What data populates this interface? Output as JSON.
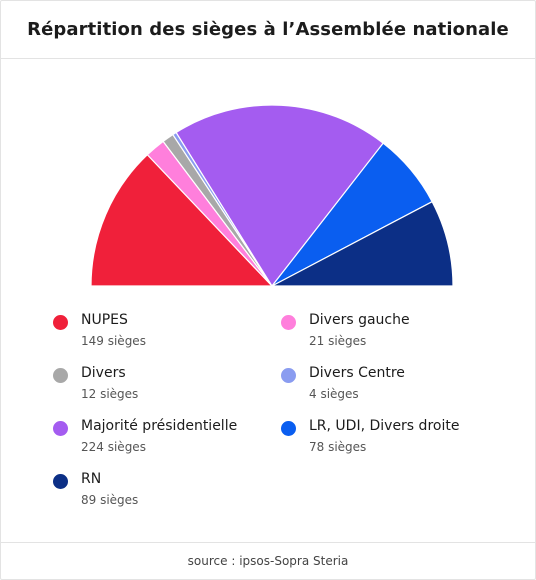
{
  "chart_data": {
    "type": "pie",
    "variant": "half-donut",
    "title": "Répartition des sièges à l’Assemblée nationale",
    "unit": "sièges",
    "series": [
      {
        "name": "NUPES",
        "value": 149,
        "value_label": "149 sièges",
        "color": "#f0203a"
      },
      {
        "name": "Divers gauche",
        "value": 21,
        "value_label": "21 sièges",
        "color": "#ff7fdc"
      },
      {
        "name": "Divers",
        "value": 12,
        "value_label": "12 sièges",
        "color": "#a8a8a8"
      },
      {
        "name": "Divers Centre",
        "value": 4,
        "value_label": "4 sièges",
        "color": "#8a9cf0"
      },
      {
        "name": "Majorité présidentielle",
        "value": 224,
        "value_label": "224 sièges",
        "color": "#a45cf0"
      },
      {
        "name": "LR, UDI, Divers droite",
        "value": 78,
        "value_label": "78 sièges",
        "color": "#0a5ef0"
      },
      {
        "name": "RN",
        "value": 89,
        "value_label": "89 sièges",
        "color": "#0c2f86"
      }
    ],
    "legend_placement": "bottom"
  },
  "footer": {
    "source": "source : ipsos-Sopra Steria"
  }
}
